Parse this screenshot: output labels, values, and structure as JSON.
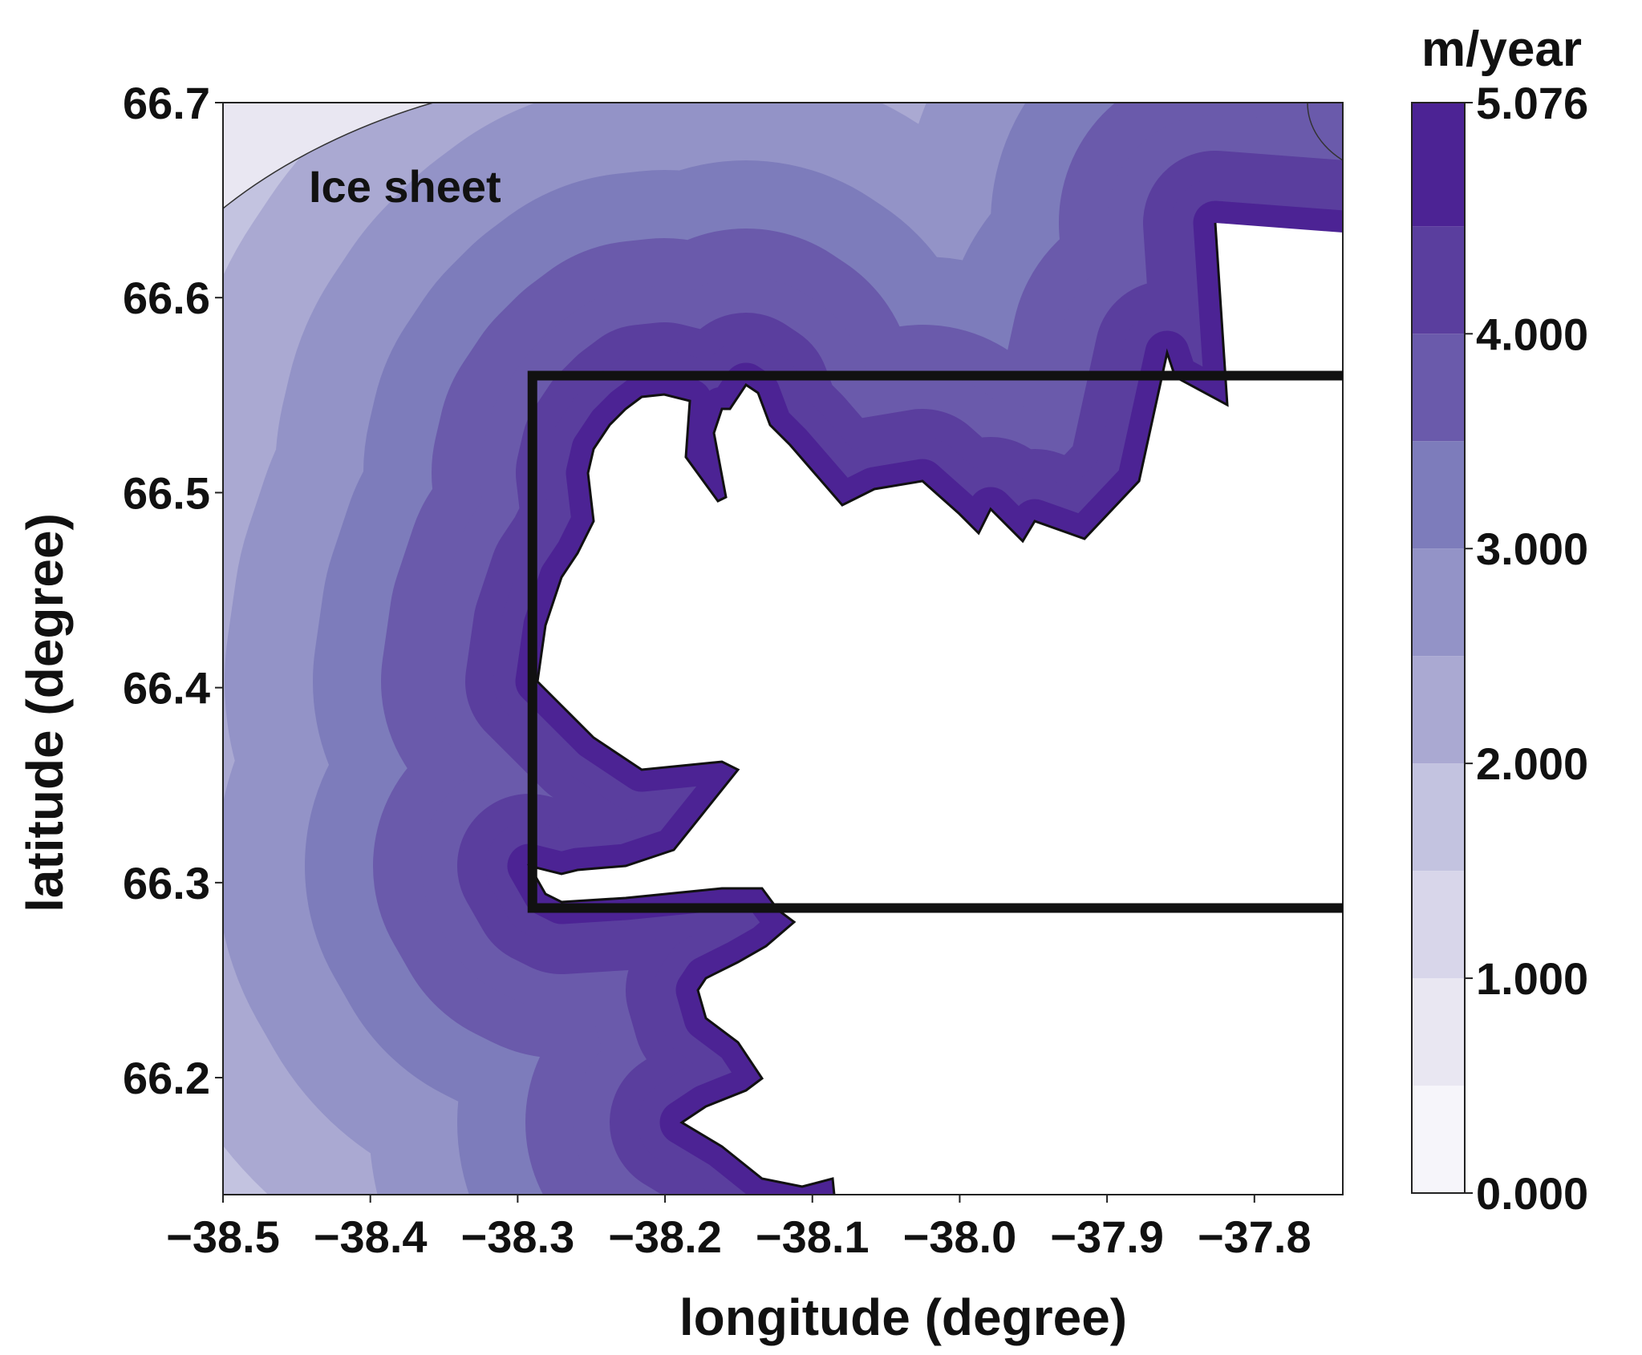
{
  "chart_data": {
    "type": "contour",
    "xlabel": "longitude (degree)",
    "ylabel": "latitude (degree)",
    "xlim": [
      -38.5,
      -37.74
    ],
    "ylim": [
      66.14,
      66.7
    ],
    "xticks": [
      -38.5,
      -38.4,
      -38.3,
      -38.2,
      -38.1,
      -38.0,
      -37.9,
      -37.8
    ],
    "xtick_labels": [
      "−38.5",
      "−38.4",
      "−38.3",
      "−38.2",
      "−38.1",
      "−38.0",
      "−37.9",
      "−37.8"
    ],
    "yticks": [
      66.2,
      66.3,
      66.4,
      66.5,
      66.6,
      66.7
    ],
    "ytick_labels": [
      "66.2",
      "66.3",
      "66.4",
      "66.5",
      "66.6",
      "66.7"
    ],
    "annotation": "Ice sheet",
    "colorbar": {
      "unit_label": "m/year",
      "range": [
        0,
        5.076
      ],
      "levels": [
        0,
        0.5,
        1.0,
        1.5,
        2.0,
        2.5,
        3.0,
        3.5,
        4.0,
        4.5,
        5.076
      ],
      "tick_values": [
        0,
        1,
        2,
        3,
        4,
        5.076
      ],
      "tick_labels": [
        "0.000",
        "1.000",
        "2.000",
        "3.000",
        "4.000",
        "5.076"
      ],
      "colors": [
        "#f6f5fa",
        "#e9e7f2",
        "#d8d6ea",
        "#c3c3e0",
        "#aaa9d2",
        "#9393c7",
        "#7d7cbb",
        "#6a5aab",
        "#5a3e9e",
        "#4c2394"
      ]
    },
    "rectangle": {
      "x": [
        -38.29,
        -37.74
      ],
      "y": [
        66.287,
        66.56
      ]
    }
  }
}
